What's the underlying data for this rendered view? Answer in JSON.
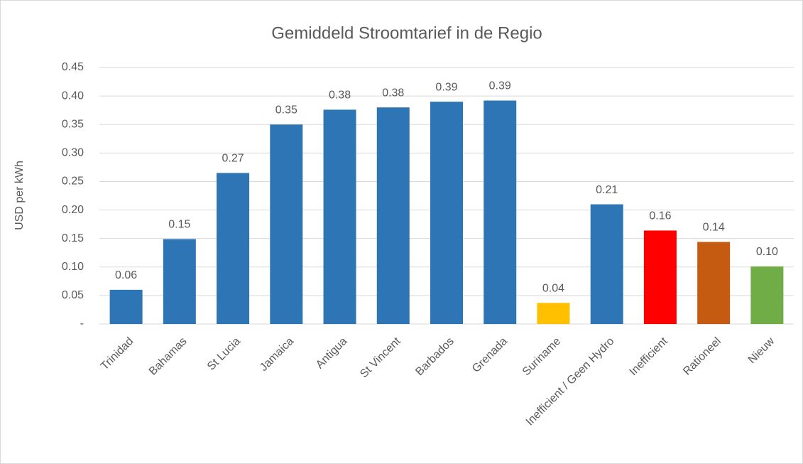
{
  "chart_data": {
    "type": "bar",
    "title": "Gemiddeld Stroomtarief in de Regio",
    "y_label": "USD per kWh",
    "categories": [
      "Trinidad",
      "Bahamas",
      "St Lucia",
      "Jamaica",
      "Antigua",
      "St Vincent",
      "Barbados",
      "Grenada",
      "Suriname",
      "Inefficient / Geen Hydro",
      "Inefficient",
      "Rationeel",
      "Nieuw"
    ],
    "values": [
      0.06,
      0.149,
      0.265,
      0.35,
      0.376,
      0.38,
      0.39,
      0.392,
      0.037,
      0.21,
      0.164,
      0.144,
      0.101
    ],
    "value_labels": [
      "0.06",
      "0.15",
      "0.27",
      "0.35",
      "0.38",
      "0.38",
      "0.39",
      "0.39",
      "0.04",
      "0.21",
      "0.16",
      "0.14",
      "0.10"
    ],
    "colors": [
      "#2e75b6",
      "#2e75b6",
      "#2e75b6",
      "#2e75b6",
      "#2e75b6",
      "#2e75b6",
      "#2e75b6",
      "#2e75b6",
      "#ffc000",
      "#2e75b6",
      "#ff0000",
      "#c55a11",
      "#70ad47"
    ],
    "ylim": [
      0,
      0.45
    ],
    "yticks": [
      {
        "value": 0,
        "label": "-"
      },
      0.05,
      {
        "value": 0.1,
        "label": "0.10"
      },
      0.15,
      {
        "value": 0.2,
        "label": "0.20"
      },
      0.25,
      {
        "value": 0.3,
        "label": "0.30"
      },
      0.35,
      {
        "value": 0.4,
        "label": "0.40"
      },
      0.45
    ],
    "grid": true
  }
}
